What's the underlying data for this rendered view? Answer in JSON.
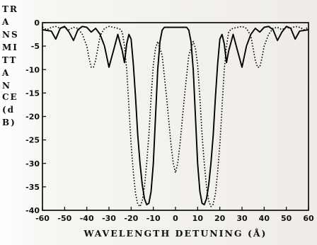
{
  "chart_data": {
    "type": "line",
    "xlabel": "WAVELENGTH DETUNING (Å)",
    "ylabel_lines": [
      "TR",
      "A",
      "NS",
      "MI",
      "TT",
      "A",
      "N",
      "CE",
      "(d",
      "B)"
    ],
    "xlim": [
      -60,
      60
    ],
    "ylim": [
      -40,
      0
    ],
    "xticks": [
      -60,
      -50,
      -40,
      -30,
      -20,
      -10,
      0,
      10,
      20,
      30,
      40,
      50,
      60
    ],
    "yticks": [
      0,
      -5,
      -10,
      -15,
      -20,
      -25,
      -30,
      -35,
      -40
    ],
    "grid": false,
    "series": [
      {
        "style": "solid",
        "color": "#000000",
        "x": [
          -60,
          -56,
          -54,
          -52,
          -50,
          -48,
          -46,
          -44,
          -42,
          -40,
          -38,
          -36,
          -34,
          -32,
          -30,
          -28,
          -26,
          -24,
          -23,
          -22,
          -21,
          -20,
          -19,
          -18,
          -17,
          -16,
          -15,
          -14,
          -13,
          -12,
          -11,
          -10,
          -9,
          -8,
          -7,
          -6,
          -5,
          -4,
          -2,
          0,
          2,
          4,
          5,
          6,
          7,
          8,
          9,
          10,
          11,
          12,
          13,
          14,
          15,
          16,
          17,
          18,
          19,
          20,
          21,
          22,
          23,
          24,
          26,
          28,
          30,
          32,
          34,
          36,
          38,
          40,
          42,
          44,
          46,
          48,
          50,
          52,
          54,
          56,
          60
        ],
        "y": [
          -1.5,
          -1.8,
          -3.5,
          -1.2,
          -0.8,
          -2.0,
          -3.8,
          -1.5,
          -0.8,
          -1.0,
          -2.0,
          -1.2,
          -2.5,
          -5.0,
          -9.5,
          -6.0,
          -2.5,
          -6.0,
          -8.5,
          -4.5,
          -2.5,
          -3.5,
          -9.0,
          -16.0,
          -24.0,
          -30.0,
          -34.5,
          -37.5,
          -38.8,
          -38.5,
          -36.0,
          -30.0,
          -20.0,
          -10.0,
          -4.0,
          -1.6,
          -1.0,
          -1.0,
          -1.0,
          -1.0,
          -1.0,
          -1.0,
          -1.0,
          -1.6,
          -4.0,
          -10.0,
          -20.0,
          -30.0,
          -36.0,
          -38.5,
          -38.8,
          -37.5,
          -34.5,
          -30.0,
          -24.0,
          -16.0,
          -9.0,
          -3.5,
          -2.5,
          -4.5,
          -8.5,
          -6.0,
          -2.5,
          -6.0,
          -9.5,
          -5.0,
          -2.5,
          -1.2,
          -2.0,
          -1.0,
          -0.8,
          -1.5,
          -3.8,
          -2.0,
          -0.8,
          -1.2,
          -3.5,
          -1.8,
          -1.5
        ]
      },
      {
        "style": "dotted",
        "color": "#000000",
        "x": [
          -60,
          -58,
          -56,
          -54,
          -52,
          -50,
          -48,
          -46,
          -44,
          -42,
          -40,
          -39,
          -38,
          -37,
          -36,
          -35,
          -34,
          -32,
          -30,
          -28,
          -26,
          -25,
          -24,
          -23,
          -22,
          -21,
          -20,
          -19,
          -18,
          -17,
          -16,
          -15,
          -14,
          -13,
          -12,
          -11,
          -10,
          -9,
          -8,
          -6,
          -4,
          -2,
          -1,
          0,
          1,
          2,
          4,
          6,
          8,
          9,
          10,
          11,
          12,
          13,
          14,
          15,
          16,
          17,
          18,
          19,
          20,
          21,
          22,
          23,
          24,
          25,
          26,
          28,
          30,
          32,
          34,
          35,
          36,
          37,
          38,
          39,
          40,
          42,
          44,
          46,
          48,
          50,
          52,
          54,
          56,
          58,
          60
        ],
        "y": [
          -1.0,
          -1.5,
          -1.0,
          -0.8,
          -1.2,
          -1.0,
          -1.5,
          -1.0,
          -1.2,
          -2.5,
          -5.0,
          -7.5,
          -9.5,
          -9.5,
          -8.0,
          -5.5,
          -2.8,
          -1.2,
          -0.8,
          -1.0,
          -1.2,
          -1.4,
          -2.0,
          -5.0,
          -10.0,
          -18.0,
          -26.0,
          -32.0,
          -36.5,
          -38.7,
          -39.2,
          -38.0,
          -35.0,
          -30.0,
          -24.0,
          -16.0,
          -9.0,
          -5.5,
          -4.0,
          -7.0,
          -16.0,
          -26.0,
          -30.0,
          -32.0,
          -30.0,
          -26.0,
          -16.0,
          -7.0,
          -4.0,
          -5.5,
          -9.0,
          -16.0,
          -24.0,
          -30.0,
          -35.0,
          -38.0,
          -39.2,
          -38.7,
          -36.5,
          -32.0,
          -26.0,
          -18.0,
          -10.0,
          -5.0,
          -2.0,
          -1.4,
          -1.2,
          -1.0,
          -0.8,
          -1.2,
          -2.8,
          -5.5,
          -8.0,
          -9.5,
          -9.5,
          -7.5,
          -5.0,
          -2.5,
          -1.2,
          -1.0,
          -1.5,
          -1.0,
          -1.2,
          -0.8,
          -1.0,
          -1.5,
          -1.0
        ]
      }
    ]
  }
}
